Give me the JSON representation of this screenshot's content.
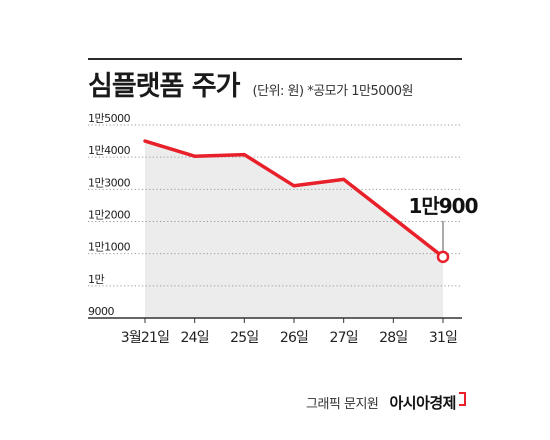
{
  "header": {
    "title": "심플랫폼 주가",
    "subtitle": "(단위: 원) *공모가 1만5000원"
  },
  "footer": {
    "credit": "그래픽 문지원",
    "brand": "아시아경제"
  },
  "colors": {
    "line": "#e8202a",
    "area": "#ececec",
    "grid": "#9a9a9a",
    "text": "#222222"
  },
  "chart_data": {
    "type": "line",
    "title": "심플랫폼 주가",
    "xlabel": "",
    "ylabel": "",
    "categories": [
      "3월21일",
      "24일",
      "25일",
      "26일",
      "27일",
      "28일",
      "31일"
    ],
    "series": [
      {
        "values": [
          14500,
          14030,
          14080,
          13110,
          13310,
          null,
          10900
        ]
      }
    ],
    "y_ticks": [
      9000,
      10000,
      11000,
      12000,
      13000,
      14000,
      15000
    ],
    "y_tick_labels": [
      "9000",
      "1만",
      "1만1000",
      "1만2000",
      "1만3000",
      "1만4000",
      "1만5000"
    ],
    "ylim": [
      9000,
      15000
    ],
    "grid": "horizontal-dotted",
    "end_label": "1만900",
    "end_marker": "open-circle"
  }
}
